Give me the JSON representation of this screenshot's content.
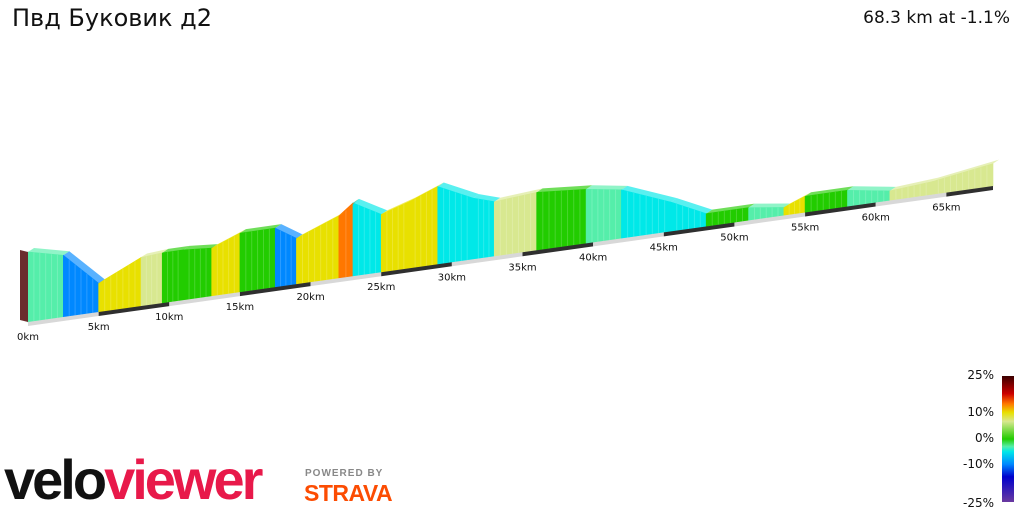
{
  "header": {
    "title": "Пвд Буковик д2",
    "summary": "68.3 km at -1.1%"
  },
  "chart_data": {
    "type": "area",
    "title": "Пвд Буковик д2",
    "total_distance_km": 68.3,
    "average_gradient_pct": -1.1,
    "x_unit": "km",
    "x_ticks": [
      "0km",
      "5km",
      "10km",
      "15km",
      "20km",
      "25km",
      "30km",
      "35km",
      "40km",
      "45km",
      "50km",
      "55km",
      "60km",
      "65km"
    ],
    "x_tick_values": [
      0,
      5,
      10,
      15,
      20,
      25,
      30,
      35,
      40,
      45,
      50,
      55,
      60,
      65
    ],
    "segments": [
      {
        "from_km": 0.0,
        "to_km": 2.5,
        "gradient_pct": -3
      },
      {
        "from_km": 2.5,
        "to_km": 5.0,
        "gradient_pct": -12
      },
      {
        "from_km": 5.0,
        "to_km": 8.0,
        "gradient_pct": 6
      },
      {
        "from_km": 8.0,
        "to_km": 9.5,
        "gradient_pct": 1
      },
      {
        "from_km": 9.5,
        "to_km": 11.0,
        "gradient_pct": 0
      },
      {
        "from_km": 11.0,
        "to_km": 13.0,
        "gradient_pct": -1
      },
      {
        "from_km": 13.0,
        "to_km": 15.0,
        "gradient_pct": 5
      },
      {
        "from_km": 15.0,
        "to_km": 17.5,
        "gradient_pct": 0
      },
      {
        "from_km": 17.5,
        "to_km": 19.0,
        "gradient_pct": -8
      },
      {
        "from_km": 19.0,
        "to_km": 22.0,
        "gradient_pct": 5
      },
      {
        "from_km": 22.0,
        "to_km": 23.0,
        "gradient_pct": 10
      },
      {
        "from_km": 23.0,
        "to_km": 25.0,
        "gradient_pct": -7
      },
      {
        "from_km": 25.0,
        "to_km": 27.0,
        "gradient_pct": 4
      },
      {
        "from_km": 27.0,
        "to_km": 29.0,
        "gradient_pct": 5
      },
      {
        "from_km": 29.0,
        "to_km": 31.5,
        "gradient_pct": -6
      },
      {
        "from_km": 31.5,
        "to_km": 33.0,
        "gradient_pct": -4
      },
      {
        "from_km": 33.0,
        "to_km": 36.0,
        "gradient_pct": 1
      },
      {
        "from_km": 36.0,
        "to_km": 39.5,
        "gradient_pct": -1
      },
      {
        "from_km": 39.5,
        "to_km": 42.0,
        "gradient_pct": -2
      },
      {
        "from_km": 42.0,
        "to_km": 45.5,
        "gradient_pct": -5
      },
      {
        "from_km": 45.5,
        "to_km": 48.0,
        "gradient_pct": -6
      },
      {
        "from_km": 48.0,
        "to_km": 51.0,
        "gradient_pct": 0
      },
      {
        "from_km": 51.0,
        "to_km": 53.5,
        "gradient_pct": -3
      },
      {
        "from_km": 53.5,
        "to_km": 55.0,
        "gradient_pct": 5
      },
      {
        "from_km": 55.0,
        "to_km": 58.0,
        "gradient_pct": 0
      },
      {
        "from_km": 58.0,
        "to_km": 61.0,
        "gradient_pct": -2
      },
      {
        "from_km": 61.0,
        "to_km": 64.0,
        "gradient_pct": 1
      },
      {
        "from_km": 64.0,
        "to_km": 68.3,
        "gradient_pct": 2
      }
    ],
    "legend": {
      "labels": [
        "25%",
        "10%",
        "0%",
        "-10%",
        "-25%"
      ],
      "values": [
        25,
        10,
        0,
        -10,
        -25
      ]
    }
  },
  "branding": {
    "logo_part1": "velo",
    "logo_part2": "viewer",
    "powered_by": "POWERED BY",
    "strava": "STRAVA"
  }
}
